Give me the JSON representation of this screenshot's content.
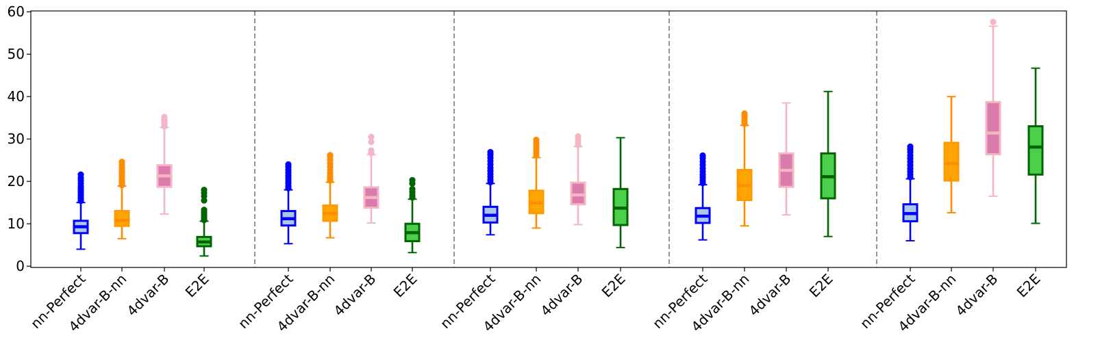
{
  "chart_data": {
    "type": "box",
    "title": "",
    "xlabel": "",
    "ylabel": "",
    "ylim": [
      -0.3,
      60.2
    ],
    "yticks": [
      0,
      10,
      20,
      30,
      40,
      50,
      60
    ],
    "grid": false,
    "legend": "none",
    "series_styles": [
      {
        "key": "nn-Perfect",
        "edge": "#0000ff",
        "fill": "#aec7e8",
        "median": "#0000ff",
        "whisker": "#0000ff",
        "flier": "#0000ff"
      },
      {
        "key": "4dvar-B-nn",
        "edge": "#ff9900",
        "fill": "#ffa500",
        "median": "#ff8c00",
        "whisker": "#ff8c00",
        "flier": "#ff8c00"
      },
      {
        "key": "4dvar-B",
        "edge": "#f4b6c2",
        "fill": "#d97bad",
        "median": "#f4b6c2",
        "whisker": "#f4b6c2",
        "flier": "#f4b6c2"
      },
      {
        "key": "E2E",
        "edge": "#006400",
        "fill": "#4cd04c",
        "median": "#006400",
        "whisker": "#006400",
        "flier": "#006400"
      }
    ],
    "groups": [
      {
        "boxes": [
          {
            "label": "nn-Perfect",
            "whisker_low": 4.0,
            "q1": 7.8,
            "median": 9.3,
            "q3": 10.7,
            "whisker_high": 15.0,
            "outliers": [
              15.4,
              15.9,
              16.4,
              16.9,
              17.4,
              17.9,
              18.4,
              18.9,
              19.5,
              20.2,
              20.8,
              21.6
            ]
          },
          {
            "label": "4dvar-B-nn",
            "whisker_low": 6.5,
            "q1": 9.5,
            "median": 10.8,
            "q3": 13.0,
            "whisker_high": 18.9,
            "outliers": [
              19.1,
              19.6,
              20.1,
              20.7,
              21.3,
              21.9,
              22.5,
              23.2,
              23.9,
              24.6
            ]
          },
          {
            "label": "4dvar-B",
            "whisker_low": 12.3,
            "q1": 18.7,
            "median": 21.3,
            "q3": 23.8,
            "whisker_high": 32.7,
            "outliers": [
              33.0,
              33.5,
              34.0,
              34.5,
              35.2
            ]
          },
          {
            "label": "E2E",
            "whisker_low": 2.4,
            "q1": 4.7,
            "median": 5.7,
            "q3": 6.9,
            "whisker_high": 10.6,
            "outliers": [
              10.9,
              11.3,
              11.8,
              12.3,
              12.8,
              13.3,
              15.5,
              16.5,
              17.3,
              18.0
            ]
          }
        ]
      },
      {
        "boxes": [
          {
            "label": "nn-Perfect",
            "whisker_low": 5.3,
            "q1": 9.6,
            "median": 11.2,
            "q3": 13.0,
            "whisker_high": 18.0,
            "outliers": [
              18.4,
              18.9,
              19.5,
              20.1,
              20.7,
              21.3,
              22.0,
              22.7,
              23.4,
              24.0
            ]
          },
          {
            "label": "4dvar-B-nn",
            "whisker_low": 6.7,
            "q1": 10.7,
            "median": 12.4,
            "q3": 14.3,
            "whisker_high": 19.8,
            "outliers": [
              20.2,
              20.7,
              21.3,
              21.9,
              22.6,
              23.4,
              24.2,
              25.0,
              25.7,
              26.2
            ]
          },
          {
            "label": "4dvar-B",
            "whisker_low": 10.2,
            "q1": 13.8,
            "median": 16.2,
            "q3": 18.6,
            "whisker_high": 26.3,
            "outliers": [
              26.7,
              27.3,
              29.3,
              30.5
            ]
          },
          {
            "label": "E2E",
            "whisker_low": 3.2,
            "q1": 5.9,
            "median": 7.9,
            "q3": 10.0,
            "whisker_high": 15.8,
            "outliers": [
              16.2,
              16.8,
              17.5,
              18.2,
              19.5,
              20.3
            ]
          }
        ]
      },
      {
        "boxes": [
          {
            "label": "nn-Perfect",
            "whisker_low": 7.4,
            "q1": 10.3,
            "median": 12.0,
            "q3": 14.0,
            "whisker_high": 19.5,
            "outliers": [
              19.8,
              20.4,
              21.1,
              21.8,
              22.5,
              23.2,
              24.0,
              24.8,
              25.6,
              26.3,
              26.9
            ]
          },
          {
            "label": "4dvar-B-nn",
            "whisker_low": 9.0,
            "q1": 12.5,
            "median": 14.9,
            "q3": 17.8,
            "whisker_high": 25.6,
            "outliers": [
              26.1,
              26.7,
              27.3,
              27.9,
              28.5,
              29.1,
              29.8
            ]
          },
          {
            "label": "4dvar-B",
            "whisker_low": 9.8,
            "q1": 14.6,
            "median": 16.8,
            "q3": 19.7,
            "whisker_high": 28.2,
            "outliers": [
              28.6,
              29.2,
              29.8,
              30.6
            ]
          },
          {
            "label": "E2E",
            "whisker_low": 4.4,
            "q1": 9.7,
            "median": 13.7,
            "q3": 18.2,
            "whisker_high": 30.3,
            "outliers": []
          }
        ]
      },
      {
        "boxes": [
          {
            "label": "nn-Perfect",
            "whisker_low": 6.2,
            "q1": 10.2,
            "median": 11.8,
            "q3": 13.7,
            "whisker_high": 19.2,
            "outliers": [
              19.6,
              20.2,
              20.9,
              21.6,
              22.3,
              23.1,
              23.9,
              24.7,
              25.5,
              26.1
            ]
          },
          {
            "label": "4dvar-B-nn",
            "whisker_low": 9.5,
            "q1": 15.6,
            "median": 19.0,
            "q3": 22.7,
            "whisker_high": 33.2,
            "outliers": [
              33.6,
              34.2,
              34.8,
              35.4,
              36.0
            ]
          },
          {
            "label": "4dvar-B",
            "whisker_low": 12.1,
            "q1": 18.7,
            "median": 22.6,
            "q3": 26.6,
            "whisker_high": 38.5,
            "outliers": []
          },
          {
            "label": "E2E",
            "whisker_low": 7.0,
            "q1": 16.0,
            "median": 21.1,
            "q3": 26.6,
            "whisker_high": 41.2,
            "outliers": []
          }
        ]
      },
      {
        "boxes": [
          {
            "label": "nn-Perfect",
            "whisker_low": 6.0,
            "q1": 10.6,
            "median": 12.4,
            "q3": 14.6,
            "whisker_high": 20.6,
            "outliers": [
              21.0,
              21.6,
              22.3,
              23.0,
              23.8,
              24.6,
              25.4,
              26.1,
              26.9,
              27.6,
              28.2
            ]
          },
          {
            "label": "4dvar-B-nn",
            "whisker_low": 12.6,
            "q1": 20.2,
            "median": 24.2,
            "q3": 29.1,
            "whisker_high": 40.0,
            "outliers": []
          },
          {
            "label": "4dvar-B",
            "whisker_low": 16.5,
            "q1": 26.4,
            "median": 31.4,
            "q3": 38.7,
            "whisker_high": 56.6,
            "outliers": [
              57.6
            ]
          },
          {
            "label": "E2E",
            "whisker_low": 10.1,
            "q1": 21.6,
            "median": 28.1,
            "q3": 33.0,
            "whisker_high": 46.7,
            "outliers": []
          }
        ]
      }
    ]
  }
}
